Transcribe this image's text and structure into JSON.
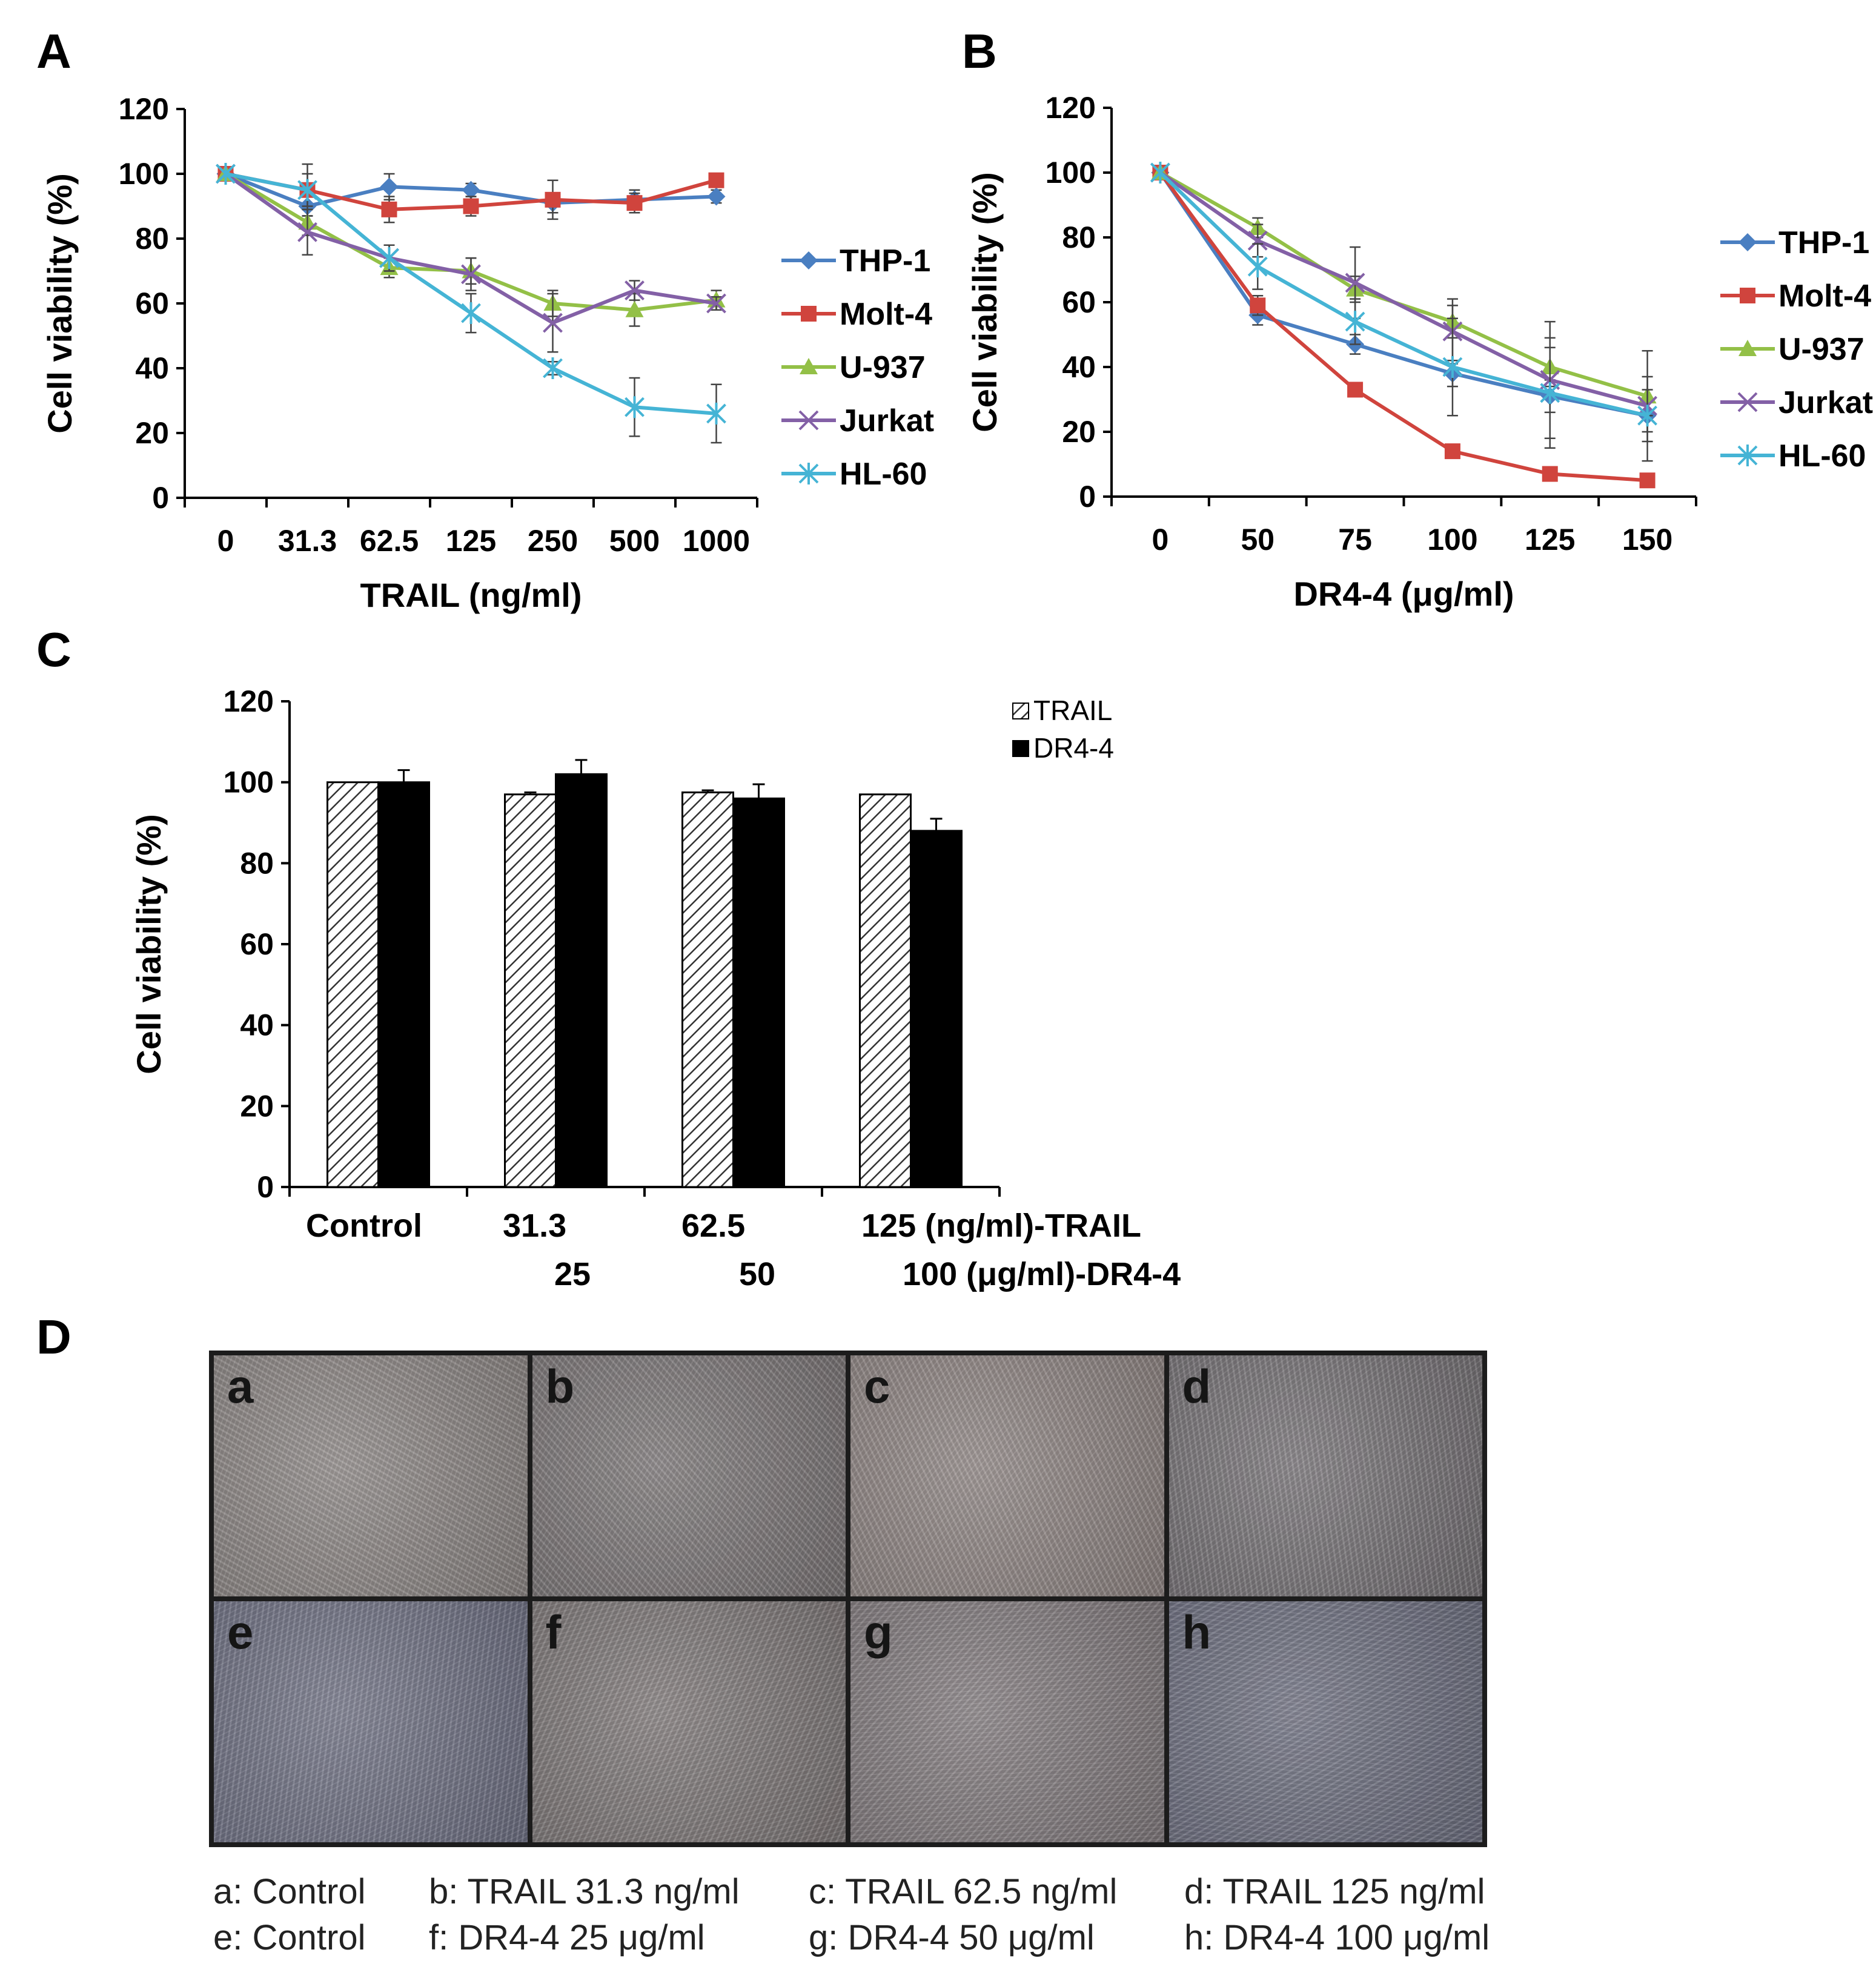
{
  "colors": {
    "THP-1": "#4a7fc1",
    "Molt-4": "#d0443d",
    "U-937": "#93c047",
    "Jurkat": "#8360a6",
    "HL-60": "#45b4d5",
    "axis": "#000000"
  },
  "chart_data": [
    {
      "panel_letter": "A",
      "type": "line",
      "xlabel": "TRAIL (ng/ml)",
      "ylabel": "Cell viability (%)",
      "categories": [
        "0",
        "31.3",
        "62.5",
        "125",
        "250",
        "500",
        "1000"
      ],
      "ylim": [
        0,
        120
      ],
      "yticks": [
        "0",
        "20",
        "40",
        "60",
        "80",
        "100",
        "120"
      ],
      "legend_placement": "right",
      "series": [
        {
          "name": "THP-1",
          "marker": "diamond",
          "values": [
            100,
            90,
            96,
            95,
            91,
            92,
            93
          ],
          "errors": [
            0,
            3,
            4,
            2,
            3,
            3,
            2
          ]
        },
        {
          "name": "Molt-4",
          "marker": "square",
          "values": [
            100,
            95,
            89,
            90,
            92,
            91,
            98
          ],
          "errors": [
            0,
            8,
            4,
            3,
            6,
            3,
            2
          ]
        },
        {
          "name": "U-937",
          "marker": "triangle",
          "values": [
            100,
            85,
            71,
            70,
            60,
            58,
            61
          ],
          "errors": [
            0,
            4,
            3,
            4,
            4,
            5,
            3
          ]
        },
        {
          "name": "Jurkat",
          "marker": "x",
          "values": [
            100,
            82,
            74,
            69,
            54,
            64,
            60
          ],
          "errors": [
            0,
            7,
            4,
            5,
            9,
            3,
            2
          ]
        },
        {
          "name": "HL-60",
          "marker": "star",
          "values": [
            100,
            95,
            74,
            57,
            40,
            28,
            26
          ],
          "errors": [
            0,
            5,
            4,
            6,
            2,
            9,
            9
          ]
        }
      ]
    },
    {
      "panel_letter": "B",
      "type": "line",
      "xlabel": "DR4-4 (μg/ml)",
      "ylabel": "Cell viability (%)",
      "categories": [
        "0",
        "50",
        "75",
        "100",
        "125",
        "150"
      ],
      "ylim": [
        0,
        120
      ],
      "yticks": [
        "0",
        "20",
        "40",
        "60",
        "80",
        "100",
        "120"
      ],
      "legend_placement": "right",
      "series": [
        {
          "name": "THP-1",
          "marker": "diamond",
          "values": [
            100,
            56,
            47,
            38,
            31,
            25
          ],
          "errors": [
            0,
            3,
            3,
            4,
            5,
            5
          ]
        },
        {
          "name": "Molt-4",
          "marker": "square",
          "values": [
            100,
            59,
            33,
            14,
            7,
            5
          ],
          "errors": [
            0,
            3,
            2,
            2,
            1,
            1
          ]
        },
        {
          "name": "U-937",
          "marker": "triangle",
          "values": [
            100,
            83,
            64,
            54,
            40,
            31
          ],
          "errors": [
            0,
            3,
            4,
            5,
            6,
            6
          ]
        },
        {
          "name": "Jurkat",
          "marker": "x",
          "values": [
            100,
            79,
            66,
            51,
            36,
            28
          ],
          "errors": [
            0,
            5,
            11,
            10,
            18,
            17
          ]
        },
        {
          "name": "HL-60",
          "marker": "star",
          "values": [
            100,
            71,
            54,
            40,
            32,
            25
          ],
          "errors": [
            0,
            7,
            7,
            15,
            17,
            8
          ]
        }
      ]
    },
    {
      "panel_letter": "C",
      "type": "bar",
      "ylabel": "Cell viability (%)",
      "ylim": [
        0,
        120
      ],
      "yticks": [
        "0",
        "20",
        "40",
        "60",
        "80",
        "100",
        "120"
      ],
      "categories": [
        {
          "line1": "Control",
          "line2": ""
        },
        {
          "line1": "31.3",
          "line2": "25"
        },
        {
          "line1": "62.5",
          "line2": "50"
        },
        {
          "line1": "125 (ng/ml)-TRAIL",
          "line2": "100 (μg/ml)-DR4-4"
        }
      ],
      "legend_placement": "top-right",
      "series": [
        {
          "name": "TRAIL",
          "pattern": "hatched",
          "values": [
            100,
            97,
            97.5,
            97
          ],
          "errors": [
            0,
            0.5,
            0.5,
            0
          ]
        },
        {
          "name": "DR4-4",
          "pattern": "solid-black",
          "values": [
            100,
            102,
            96,
            88
          ],
          "errors": [
            3,
            3.5,
            3.5,
            3
          ]
        }
      ]
    }
  ],
  "panel_d": {
    "panel_letter": "D",
    "tiles": [
      {
        "letter": "a",
        "caption": "a: Control",
        "tone": "#8d8785"
      },
      {
        "letter": "b",
        "caption": "b: TRAIL 31.3 ng/ml",
        "tone": "#7b7677"
      },
      {
        "letter": "c",
        "caption": "c: TRAIL 62.5 ng/ml",
        "tone": "#8f8583"
      },
      {
        "letter": "d",
        "caption": "d: TRAIL 125 ng/ml",
        "tone": "#767276"
      },
      {
        "letter": "e",
        "caption": "e: Control",
        "tone": "#6f7184"
      },
      {
        "letter": "f",
        "caption": "f: DR4-4 25 μg/ml",
        "tone": "#7e7878"
      },
      {
        "letter": "g",
        "caption": "g: DR4-4 50 μg/ml",
        "tone": "#827b7e"
      },
      {
        "letter": "h",
        "caption": "h: DR4-4 100 μg/ml",
        "tone": "#6d6f80"
      }
    ]
  }
}
